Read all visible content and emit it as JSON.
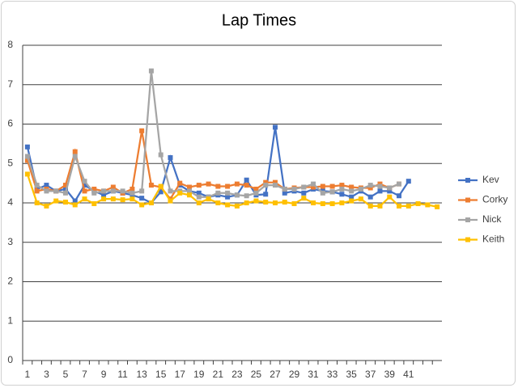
{
  "chart_data": {
    "type": "line",
    "title": "Lap Times",
    "categories": [
      "1",
      null,
      "3",
      null,
      "5",
      null,
      "7",
      null,
      "9",
      null,
      "11",
      null,
      "13",
      null,
      "15",
      null,
      "17",
      null,
      "19",
      null,
      "21",
      null,
      "23",
      null,
      "25",
      null,
      "27",
      null,
      "29",
      null,
      "31",
      null,
      "33",
      null,
      "35",
      null,
      "37",
      null,
      "39",
      null,
      "41",
      null,
      null,
      null
    ],
    "series": [
      {
        "name": "Kev",
        "color": "#4472c4",
        "values": [
          5.42,
          4.35,
          4.45,
          4.3,
          4.35,
          4.05,
          4.45,
          4.3,
          4.2,
          4.3,
          4.25,
          4.2,
          4.12,
          4.0,
          4.28,
          5.15,
          4.45,
          4.3,
          4.25,
          4.15,
          4.2,
          4.15,
          4.2,
          4.58,
          4.2,
          4.22,
          5.92,
          4.25,
          4.3,
          4.25,
          4.35,
          4.3,
          4.28,
          4.22,
          4.15,
          4.3,
          4.15,
          4.3,
          4.3,
          4.18,
          4.55,
          null,
          null,
          null
        ]
      },
      {
        "name": "Corky",
        "color": "#ed7d31",
        "values": [
          5.08,
          4.3,
          4.35,
          4.3,
          4.45,
          5.3,
          4.3,
          4.35,
          4.3,
          4.4,
          4.25,
          4.35,
          5.83,
          4.45,
          4.4,
          4.1,
          4.5,
          4.4,
          4.45,
          4.48,
          4.42,
          4.42,
          4.48,
          4.45,
          4.35,
          4.52,
          4.52,
          4.35,
          4.38,
          4.4,
          4.4,
          4.42,
          4.42,
          4.45,
          4.4,
          4.38,
          4.38,
          4.48,
          4.38,
          4.48,
          null,
          null,
          null,
          null
        ]
      },
      {
        "name": "Nick",
        "color": "#a5a5a5",
        "values": [
          5.18,
          4.45,
          4.3,
          4.3,
          4.25,
          5.18,
          4.55,
          4.25,
          4.3,
          4.3,
          4.3,
          4.25,
          4.3,
          7.35,
          5.22,
          4.3,
          4.3,
          4.3,
          4.15,
          4.15,
          4.25,
          4.25,
          4.2,
          4.18,
          4.25,
          4.45,
          4.45,
          4.35,
          4.35,
          4.4,
          4.48,
          4.25,
          4.28,
          4.35,
          4.3,
          4.35,
          4.45,
          4.42,
          4.38,
          4.48,
          null,
          null,
          null,
          null
        ]
      },
      {
        "name": "Keith",
        "color": "#ffc000",
        "values": [
          4.73,
          4.0,
          3.92,
          4.05,
          4.02,
          3.95,
          4.1,
          3.98,
          4.1,
          4.1,
          4.08,
          4.1,
          3.95,
          4.0,
          4.42,
          4.05,
          4.25,
          4.2,
          4.0,
          4.1,
          4.0,
          3.95,
          3.92,
          4.0,
          4.05,
          4.02,
          4.0,
          4.02,
          3.98,
          4.12,
          4.0,
          3.98,
          3.98,
          4.0,
          4.05,
          4.1,
          3.92,
          3.92,
          4.15,
          3.92,
          3.92,
          3.98,
          3.95,
          3.9
        ]
      }
    ],
    "ylim": [
      0,
      8
    ],
    "yticks": [
      0,
      1,
      2,
      3,
      4,
      5,
      6,
      7,
      8
    ],
    "grid": true,
    "legend": "right"
  }
}
